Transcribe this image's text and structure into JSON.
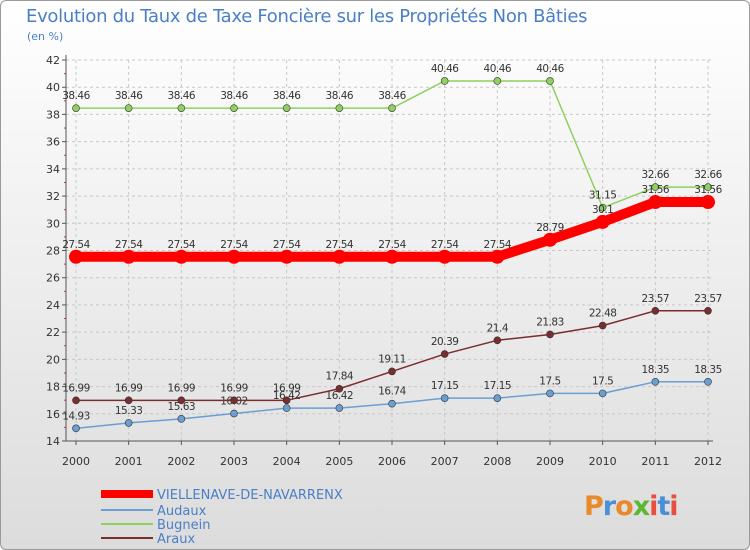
{
  "title": "Evolution du Taux de Taxe Foncière sur les Propriétés Non Bâties",
  "unit": "(en %)",
  "logo": {
    "text": "Proxiti",
    "colors": [
      "#e8892b",
      "#4a90d9",
      "#e8892b",
      "#5bb832",
      "#e84d3d",
      "#4a90d9",
      "#e84d3d"
    ]
  },
  "chart_data": {
    "type": "line",
    "title": "Evolution du Taux de Taxe Foncière sur les Propriétés Non Bâties",
    "ylabel": "(en %)",
    "xlabel": "",
    "x": [
      "2000",
      "2001",
      "2002",
      "2003",
      "2004",
      "2005",
      "2006",
      "2007",
      "2008",
      "2009",
      "2010",
      "2011",
      "2012"
    ],
    "ylim": [
      14,
      42
    ],
    "yticks": [
      14,
      16,
      18,
      20,
      22,
      24,
      26,
      28,
      30,
      32,
      34,
      36,
      38,
      40,
      42
    ],
    "grid": true,
    "legend_position": "bottom-left",
    "series": [
      {
        "name": "VIELLENAVE-DE-NAVARRENX",
        "color": "#ff0000",
        "values": [
          27.54,
          27.54,
          27.54,
          27.54,
          27.54,
          27.54,
          27.54,
          27.54,
          27.54,
          28.79,
          30.1,
          31.56,
          31.56
        ],
        "labels": [
          "27.54",
          "27.54",
          "27.54",
          "27.54",
          "27.54",
          "27.54",
          "27.54",
          "27.54",
          "27.54",
          "28.79",
          "30.1",
          "31.56",
          "31.56"
        ]
      },
      {
        "name": "Audaux",
        "color": "#6b9fd3",
        "values": [
          14.93,
          15.33,
          15.63,
          16.02,
          16.42,
          16.42,
          16.74,
          17.15,
          17.15,
          17.5,
          17.5,
          18.35,
          18.35
        ],
        "labels": [
          "14.93",
          "15.33",
          "15.63",
          "16.02",
          "16.42",
          "16.42",
          "16.74",
          "17.15",
          "17.15",
          "17.5",
          "17.5",
          "18.35",
          "18.35"
        ]
      },
      {
        "name": "Bugnein",
        "color": "#8fd060",
        "values": [
          38.46,
          38.46,
          38.46,
          38.46,
          38.46,
          38.46,
          38.46,
          40.46,
          40.46,
          40.46,
          31.15,
          32.66,
          32.66
        ],
        "labels": [
          "38.46",
          "38.46",
          "38.46",
          "38.46",
          "38.46",
          "38.46",
          "38.46",
          "40.46",
          "40.46",
          "40.46",
          "31.15",
          "32.66",
          "32.66"
        ]
      },
      {
        "name": "Araux",
        "color": "#7a2d2d",
        "values": [
          16.99,
          16.99,
          16.99,
          16.99,
          16.99,
          17.84,
          19.11,
          20.39,
          21.4,
          21.83,
          22.48,
          23.57,
          23.57
        ],
        "labels": [
          "16.99",
          "16.99",
          "16.99",
          "16.99",
          "16.99",
          "17.84",
          "19.11",
          "20.39",
          "21.4",
          "21.83",
          "22.48",
          "23.57",
          "23.57"
        ]
      }
    ]
  }
}
